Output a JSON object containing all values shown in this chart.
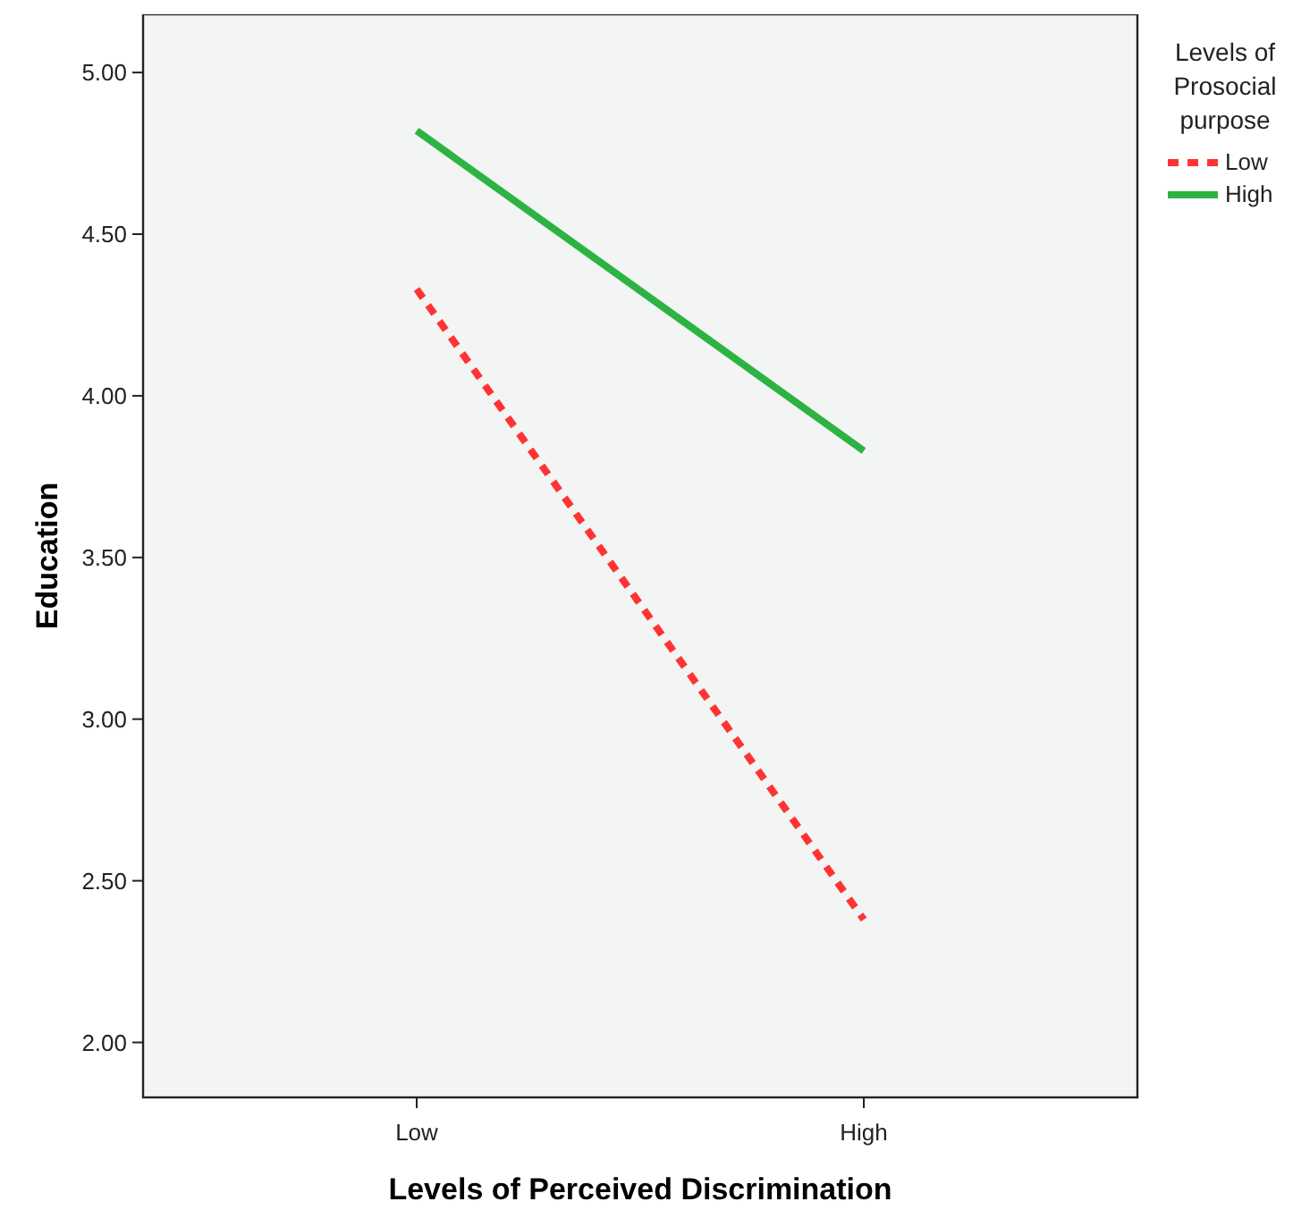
{
  "chart_data": {
    "type": "line",
    "xlabel": "Levels of Perceived Discrimination",
    "ylabel": "Education",
    "legend_title": "Levels of Prosocial purpose",
    "legend": "right",
    "categories": [
      "Low",
      "High"
    ],
    "ylim": [
      1.83,
      5.18
    ],
    "yticks": [
      {
        "value": 2,
        "label": "2.00"
      },
      {
        "value": 2.5,
        "label": "2.50"
      },
      {
        "value": 3,
        "label": "3.00"
      },
      {
        "value": 3.5,
        "label": "3.50"
      },
      {
        "value": 4,
        "label": "4.00"
      },
      {
        "value": 4.5,
        "label": "4.50"
      },
      {
        "value": 5,
        "label": "5.00"
      }
    ],
    "marker": "none",
    "series": [
      {
        "name": "Low",
        "color": "#ff3333",
        "line_style": "dashed",
        "values": [
          4.33,
          2.38
        ]
      },
      {
        "name": "High",
        "color": "#2db342",
        "line_style": "solid",
        "values": [
          4.82,
          3.83
        ]
      }
    ]
  }
}
